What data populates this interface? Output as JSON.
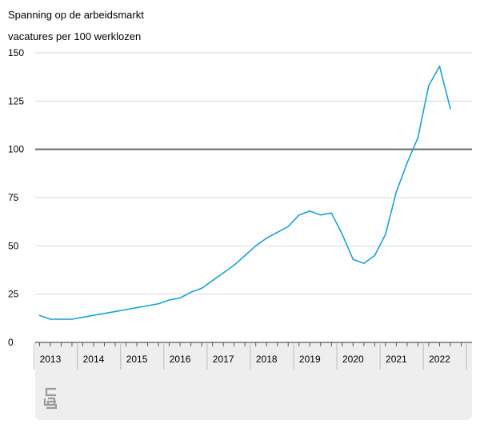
{
  "chart_data": {
    "type": "line",
    "title": "Spanning op de arbeidsmarkt",
    "subtitle": "vacatures per 100 werklozen",
    "ylim": [
      0,
      150
    ],
    "yticks": [
      0,
      25,
      50,
      75,
      100,
      125,
      150
    ],
    "xlim": [
      2012.9,
      2023.0
    ],
    "year_labels": [
      "2013",
      "2014",
      "2015",
      "2016",
      "2017",
      "2018",
      "2019",
      "2020",
      "2021",
      "2022"
    ],
    "reference_line": 100,
    "grid": true,
    "series": [
      {
        "color": "#1aa3d4",
        "x": [
          2013.0,
          2013.25,
          2013.5,
          2013.75,
          2014.0,
          2014.25,
          2014.5,
          2014.75,
          2015.0,
          2015.25,
          2015.5,
          2015.75,
          2016.0,
          2016.25,
          2016.5,
          2016.75,
          2017.0,
          2017.25,
          2017.5,
          2017.75,
          2018.0,
          2018.25,
          2018.5,
          2018.75,
          2019.0,
          2019.25,
          2019.5,
          2019.75,
          2020.0,
          2020.25,
          2020.5,
          2020.75,
          2021.0,
          2021.25,
          2021.5,
          2021.75,
          2022.0,
          2022.25,
          2022.5
        ],
        "values": [
          14,
          12,
          12,
          12,
          13,
          14,
          15,
          16,
          17,
          18,
          19,
          20,
          22,
          23,
          26,
          28,
          32,
          36,
          40,
          45,
          50,
          54,
          57,
          60,
          66,
          68,
          66,
          67,
          56,
          43,
          41,
          45,
          56,
          78,
          93,
          106,
          133,
          143,
          121
        ]
      }
    ]
  },
  "colors": {
    "reference_line": "#666666",
    "grid": "#d9d9d9",
    "axis_bg": "#eeeeee",
    "footer_bg": "#eeeeee"
  },
  "logo_icon": "cbs-logo-icon"
}
